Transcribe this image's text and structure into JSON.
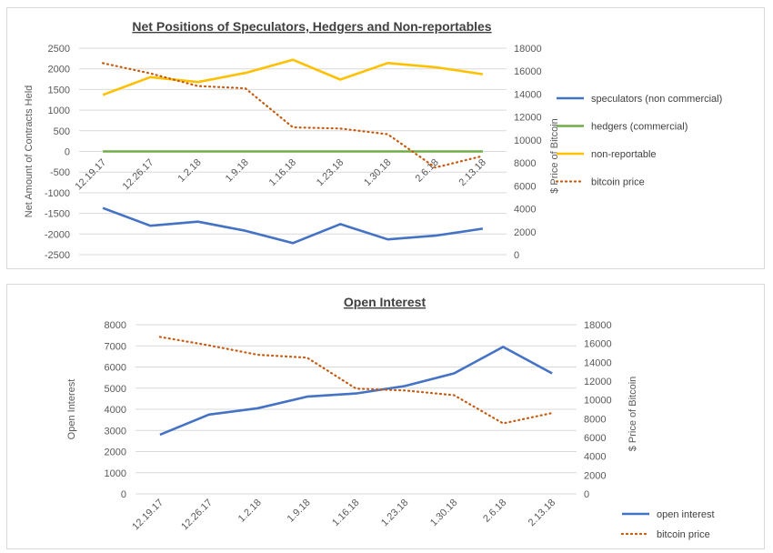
{
  "chart_data": [
    {
      "type": "line",
      "title": "Net Positions of Speculators, Hedgers and Non-reportables",
      "xlabel": "",
      "ylabel": "Net Amount of Contracts Held",
      "y2label": "$ Price of Bitcoin",
      "categories": [
        "12.19.17",
        "12.26.17",
        "1.2.18",
        "1.9.18",
        "1.16.18",
        "1.23.18",
        "1.30.18",
        "2.6.18",
        "2.13.18"
      ],
      "ylim": [
        -2500,
        2500
      ],
      "yticks": [
        2500,
        2000,
        1500,
        1000,
        500,
        0,
        -500,
        -1000,
        -1500,
        -2000,
        -2500
      ],
      "y2lim": [
        0,
        18000
      ],
      "y2ticks": [
        18000,
        16000,
        14000,
        12000,
        10000,
        8000,
        6000,
        4000,
        2000,
        0
      ],
      "legend_position": "right",
      "series": [
        {
          "name": "speculators (non commercial)",
          "axis": "left",
          "style": "solid",
          "color": "#4472c4",
          "values": [
            -1370,
            -1800,
            -1700,
            -1920,
            -2220,
            -1760,
            -2130,
            -2040,
            -1870
          ]
        },
        {
          "name": "hedgers (commercial)",
          "axis": "left",
          "style": "solid",
          "color": "#70ad47",
          "values": [
            0,
            0,
            0,
            0,
            0,
            0,
            0,
            0,
            0
          ]
        },
        {
          "name": "non-reportable",
          "axis": "left",
          "style": "solid",
          "color": "#ffc000",
          "values": [
            1370,
            1800,
            1680,
            1900,
            2220,
            1740,
            2140,
            2040,
            1870
          ]
        },
        {
          "name": "bitcoin price",
          "axis": "right",
          "style": "dotted",
          "color": "#c55a11",
          "values": [
            16700,
            15800,
            14700,
            14500,
            11100,
            11000,
            10500,
            7600,
            8600
          ]
        }
      ]
    },
    {
      "type": "line",
      "title": "Open Interest",
      "xlabel": "",
      "ylabel": "Open Interest",
      "y2label": "$ Price of Bitcoin",
      "categories": [
        "12.19.17",
        "12.26.17",
        "1.2.18",
        "1.9.18",
        "1.16.18",
        "1.23.18",
        "1.30.18",
        "2.6.18",
        "2.13.18"
      ],
      "ylim": [
        0,
        8000
      ],
      "yticks": [
        8000,
        7000,
        6000,
        5000,
        4000,
        3000,
        2000,
        1000,
        0
      ],
      "y2lim": [
        0,
        18000
      ],
      "y2ticks": [
        18000,
        16000,
        14000,
        12000,
        10000,
        8000,
        6000,
        4000,
        2000,
        0
      ],
      "legend_position": "bottom-right",
      "series": [
        {
          "name": "open interest",
          "axis": "left",
          "style": "solid",
          "color": "#4472c4",
          "values": [
            2800,
            3750,
            4050,
            4600,
            4750,
            5100,
            5700,
            6950,
            5700
          ]
        },
        {
          "name": "bitcoin price",
          "axis": "right",
          "style": "dotted",
          "color": "#c55a11",
          "values": [
            16700,
            15800,
            14800,
            14500,
            11200,
            11000,
            10500,
            7500,
            8600
          ]
        }
      ]
    }
  ]
}
